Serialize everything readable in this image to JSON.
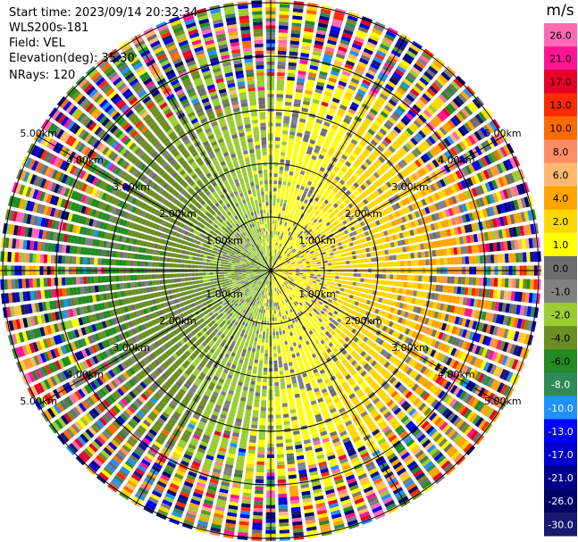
{
  "header": {
    "start_time": "Start time: 2023/09/14 20:32:34",
    "instrument": "WLS200s-181",
    "field": "Field: VEL",
    "elevation": "Elevation(deg): 35.30",
    "nrays": "NRays: 120"
  },
  "chart_data": {
    "type": "heatmap",
    "projection": "polar-ppi",
    "field": "VEL",
    "units": "m/s",
    "elevation_deg": 35.3,
    "n_rays": 120,
    "range_rings_km": [
      1.0,
      2.0,
      3.0,
      4.0,
      5.0
    ],
    "range_ring_labels": [
      "1.00km",
      "2.00km",
      "3.00km",
      "4.00km",
      "5.00km"
    ],
    "azimuth_lines_deg": [
      0,
      30,
      60,
      90,
      120,
      150,
      180,
      210,
      240,
      270,
      300,
      330
    ],
    "max_range_km": 5.0,
    "colorbar": {
      "label": "m/s",
      "tick_labels": [
        "26.0",
        "21.0",
        "17.0",
        "13.0",
        "10.0",
        "8.0",
        "6.0",
        "4.0",
        "2.0",
        "1.0",
        "0.0",
        "-1.0",
        "-2.0",
        "-4.0",
        "-6.0",
        "-8.0",
        "-10.0",
        "-13.0",
        "-17.0",
        "-21.0",
        "-26.0",
        "-30.0"
      ],
      "colors": [
        "#ff69b4",
        "#ff1493",
        "#e8002a",
        "#ff2a00",
        "#ff6a00",
        "#ff8c66",
        "#ffb870",
        "#ffa500",
        "#ffd700",
        "#ffff00",
        "#6d6d6d",
        "#808080",
        "#9acd32",
        "#6b8e23",
        "#228b22",
        "#2e8b57",
        "#1e90ff",
        "#0000ff",
        "#0000cd",
        "#00008b",
        "#000066",
        "#191970"
      ]
    },
    "pattern_summary": "inbound (negative, green) velocities toward west, outbound (positive, yellow/orange) toward east; speckled noise beyond ~3 km"
  }
}
